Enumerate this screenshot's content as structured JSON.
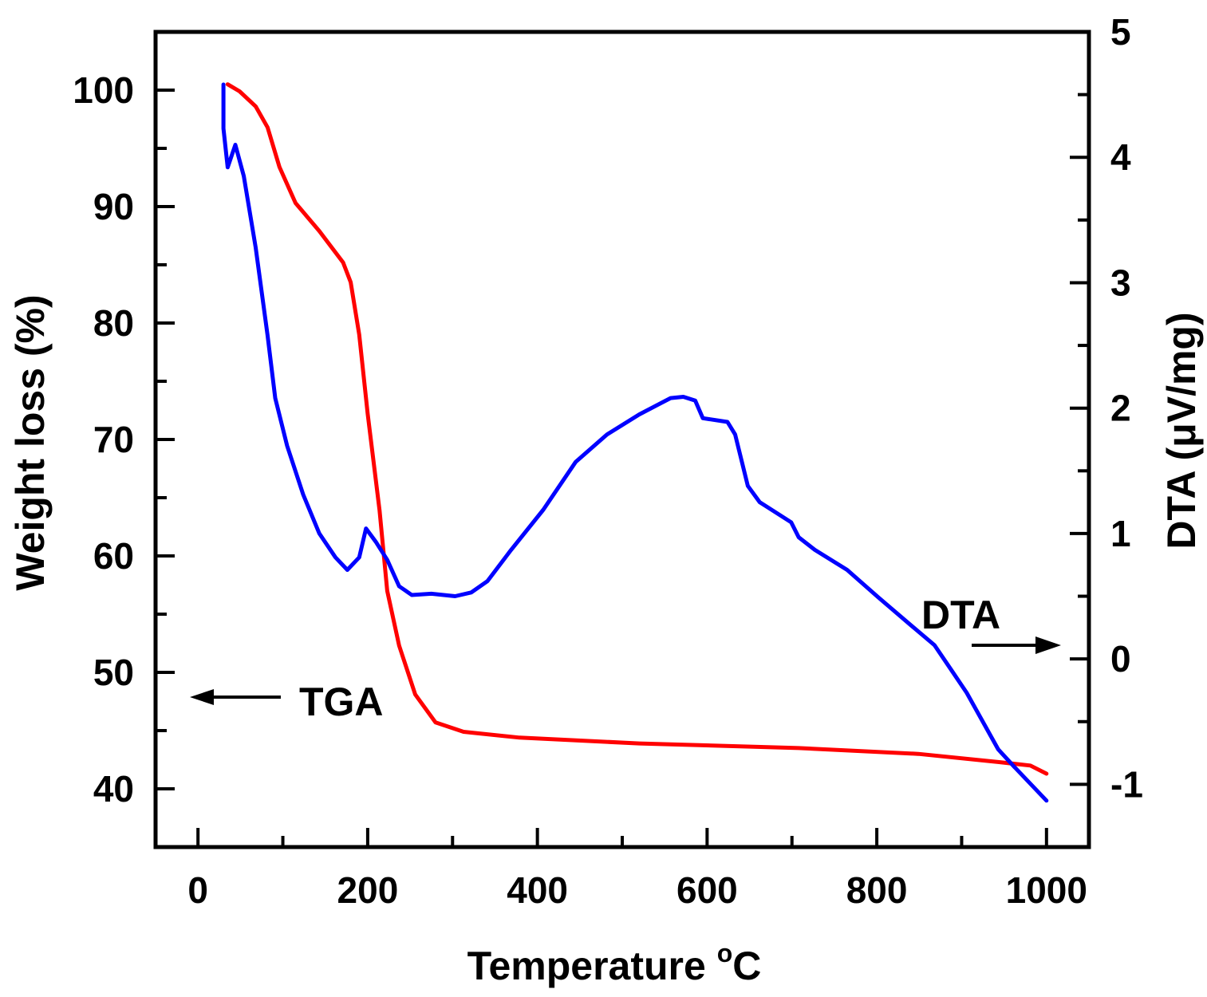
{
  "chart_data": {
    "type": "line",
    "xlabel": "Temperature",
    "xlabel_unit": "°C",
    "ylabel_left": "Weight loss (%)",
    "ylabel_right": "DTA (μV/mg)",
    "xlim": [
      -50,
      1050
    ],
    "ylim_left": [
      35,
      105
    ],
    "ylim_right": [
      -1.5,
      5
    ],
    "xticks": [
      "0",
      "200",
      "400",
      "600",
      "800",
      "1000"
    ],
    "yticks_left": [
      "40",
      "50",
      "60",
      "70",
      "80",
      "90",
      "100"
    ],
    "yticks_right": [
      "-1",
      "0",
      "1",
      "2",
      "3",
      "4",
      "5"
    ],
    "grid": false,
    "colors": {
      "tga": "#ff0000",
      "dta": "#0000ff"
    },
    "annotations": [
      {
        "text": "TGA",
        "arrow": "left"
      },
      {
        "text": "DTA",
        "arrow": "right"
      }
    ],
    "series": [
      {
        "axis": "left",
        "color": "#ff0000",
        "x": [
          35,
          49,
          68,
          82,
          96,
          115,
          143,
          171,
          180,
          190,
          200,
          214,
          223,
          237,
          256,
          280,
          313,
          379,
          520,
          708,
          849,
          943,
          981,
          1000
        ],
        "y": [
          100.5,
          99.9,
          98.6,
          96.8,
          93.4,
          90.3,
          87.9,
          85.2,
          83.5,
          79,
          72.2,
          63.9,
          57,
          52.3,
          48.1,
          45.7,
          44.9,
          44.4,
          43.9,
          43.5,
          43,
          42.3,
          42,
          41.3
        ]
      },
      {
        "axis": "right",
        "color": "#0000ff",
        "x": [
          30,
          30,
          35,
          44,
          54,
          68,
          82,
          91,
          105,
          124,
          143,
          162,
          176,
          190,
          198,
          210,
          223,
          237,
          252,
          275,
          303,
          322,
          341,
          369,
          407,
          445,
          482,
          520,
          557,
          572,
          586,
          595,
          624,
          633,
          648,
          662,
          699,
          708,
          727,
          765,
          802,
          840,
          868,
          887,
          906,
          943,
          962,
          1000
        ],
        "y": [
          4.58,
          4.23,
          3.92,
          4.1,
          3.85,
          3.28,
          2.58,
          2.08,
          1.7,
          1.31,
          1.0,
          0.81,
          0.71,
          0.81,
          1.04,
          0.93,
          0.79,
          0.58,
          0.51,
          0.52,
          0.5,
          0.53,
          0.62,
          0.87,
          1.19,
          1.57,
          1.79,
          1.95,
          2.08,
          2.09,
          2.06,
          1.92,
          1.89,
          1.79,
          1.38,
          1.25,
          1.09,
          0.97,
          0.87,
          0.71,
          0.49,
          0.27,
          0.11,
          -0.08,
          -0.27,
          -0.72,
          -0.86,
          -1.13
        ]
      }
    ]
  }
}
